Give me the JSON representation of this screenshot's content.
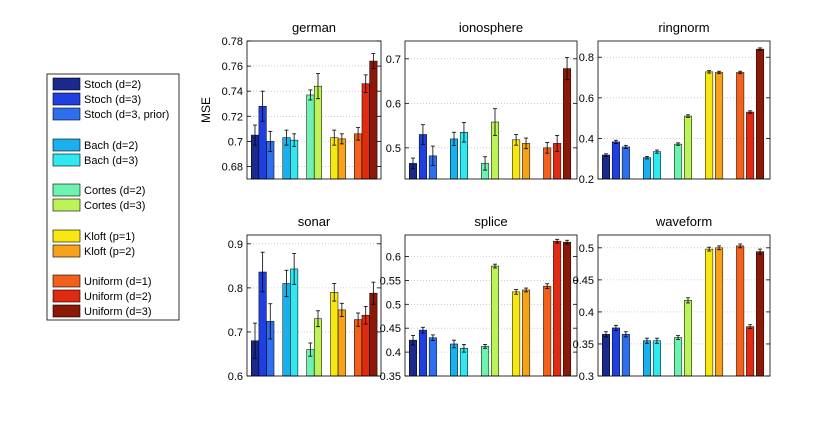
{
  "chart_data": {
    "type": "bar",
    "series": [
      {
        "name": "Stoch (d=2)",
        "color": "#1a2a8c"
      },
      {
        "name": "Stoch (d=3)",
        "color": "#1f3fe0"
      },
      {
        "name": "Stoch (d=3, prior)",
        "color": "#2e6ff0"
      },
      {
        "name": "Bach (d=2)",
        "color": "#1ab0ee"
      },
      {
        "name": "Bach (d=3)",
        "color": "#2fe8f2"
      },
      {
        "name": "Cortes (d=2)",
        "color": "#6ef2b0"
      },
      {
        "name": "Cortes (d=3)",
        "color": "#bcf25a"
      },
      {
        "name": "Kloft (p=1)",
        "color": "#f8e812"
      },
      {
        "name": "Kloft (p=2)",
        "color": "#f6a21a"
      },
      {
        "name": "Uniform (d=1)",
        "color": "#f2601c"
      },
      {
        "name": "Uniform (d=2)",
        "color": "#e02a12"
      },
      {
        "name": "Uniform (d=3)",
        "color": "#8c1808"
      }
    ],
    "panels": [
      {
        "title": "german",
        "ylabel": "MSE",
        "ylim": [
          0.67,
          0.78
        ],
        "yticks": [
          0.68,
          0.7,
          0.72,
          0.74,
          0.76,
          0.78
        ],
        "ytick_labels": [
          "0.68",
          "0.7",
          "0.72",
          "0.74",
          "0.76",
          "0.78"
        ],
        "values": [
          0.705,
          0.728,
          0.7,
          0.703,
          0.701,
          0.737,
          0.744,
          0.703,
          0.702,
          0.706,
          0.746,
          0.764
        ],
        "errors": [
          0.008,
          0.012,
          0.008,
          0.006,
          0.005,
          0.004,
          0.01,
          0.006,
          0.004,
          0.005,
          0.007,
          0.006
        ]
      },
      {
        "title": "ionosphere",
        "ylabel": "",
        "ylim": [
          0.43,
          0.74
        ],
        "yticks": [
          0.5,
          0.6,
          0.7
        ],
        "ytick_labels": [
          "0.5",
          "0.6",
          "0.7"
        ],
        "values": [
          0.465,
          0.53,
          0.482,
          0.52,
          0.535,
          0.465,
          0.558,
          0.518,
          0.51,
          0.5,
          0.51,
          0.678
        ],
        "errors": [
          0.012,
          0.022,
          0.022,
          0.015,
          0.022,
          0.015,
          0.03,
          0.012,
          0.012,
          0.012,
          0.018,
          0.025
        ]
      },
      {
        "title": "ringnorm",
        "ylabel": "",
        "ylim": [
          0.2,
          0.88
        ],
        "yticks": [
          0.2,
          0.4,
          0.6,
          0.8
        ],
        "ytick_labels": [
          "0.2",
          "0.4",
          "0.6",
          "0.8"
        ],
        "values": [
          0.318,
          0.383,
          0.358,
          0.305,
          0.335,
          0.372,
          0.51,
          0.728,
          0.725,
          0.725,
          0.53,
          0.84
        ],
        "errors": [
          0.006,
          0.008,
          0.008,
          0.006,
          0.008,
          0.006,
          0.006,
          0.006,
          0.006,
          0.006,
          0.006,
          0.006
        ]
      },
      {
        "title": "sonar",
        "ylabel": "",
        "ylim": [
          0.6,
          0.92
        ],
        "yticks": [
          0.6,
          0.7,
          0.8,
          0.9
        ],
        "ytick_labels": [
          "0.6",
          "0.7",
          "0.8",
          "0.9"
        ],
        "values": [
          0.68,
          0.836,
          0.724,
          0.81,
          0.843,
          0.66,
          0.73,
          0.79,
          0.75,
          0.728,
          0.738,
          0.788
        ],
        "errors": [
          0.04,
          0.045,
          0.04,
          0.03,
          0.035,
          0.015,
          0.018,
          0.02,
          0.015,
          0.015,
          0.02,
          0.025
        ]
      },
      {
        "title": "splice",
        "ylabel": "",
        "ylim": [
          0.35,
          0.645
        ],
        "yticks": [
          0.35,
          0.4,
          0.45,
          0.5,
          0.55,
          0.6
        ],
        "ytick_labels": [
          "0.35",
          "0.4",
          "0.45",
          "0.5",
          "0.55",
          "0.6"
        ],
        "values": [
          0.425,
          0.446,
          0.43,
          0.417,
          0.408,
          0.412,
          0.58,
          0.526,
          0.53,
          0.538,
          0.632,
          0.63
        ],
        "errors": [
          0.01,
          0.006,
          0.006,
          0.008,
          0.008,
          0.004,
          0.004,
          0.005,
          0.004,
          0.005,
          0.004,
          0.004
        ]
      },
      {
        "title": "waveform",
        "ylabel": "",
        "ylim": [
          0.3,
          0.52
        ],
        "yticks": [
          0.3,
          0.35,
          0.4,
          0.45,
          0.5
        ],
        "ytick_labels": [
          "0.3",
          "0.35",
          "0.4",
          "0.45",
          "0.5"
        ],
        "values": [
          0.365,
          0.375,
          0.365,
          0.355,
          0.355,
          0.36,
          0.418,
          0.498,
          0.5,
          0.503,
          0.377,
          0.494
        ],
        "errors": [
          0.004,
          0.004,
          0.004,
          0.004,
          0.004,
          0.003,
          0.004,
          0.003,
          0.003,
          0.003,
          0.003,
          0.004
        ]
      }
    ],
    "grid": "horizontal-dotted",
    "legend_position": "left"
  }
}
